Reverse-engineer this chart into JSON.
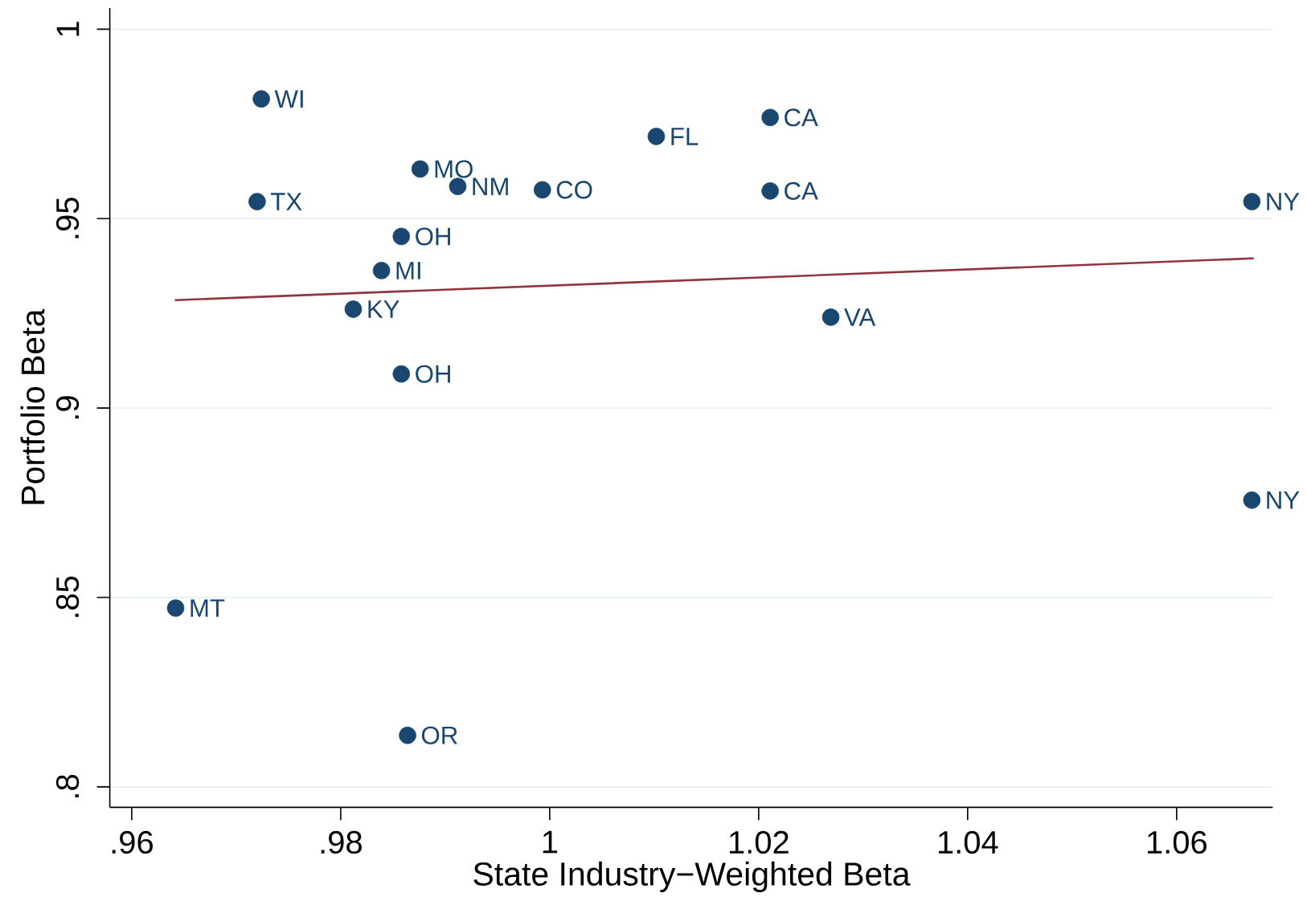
{
  "chart_data": {
    "type": "scatter",
    "xlabel": "State Industry−Weighted Beta",
    "ylabel": "Portfolio Beta",
    "xlim": [
      0.9579,
      1.0692
    ],
    "ylim": [
      0.7946,
      1.0056
    ],
    "xticks": [
      {
        "value": 0.96,
        "label": ".96"
      },
      {
        "value": 0.98,
        "label": ".98"
      },
      1,
      1.02,
      1.04,
      1.06
    ],
    "yticks": [
      {
        "value": 0.8,
        "label": ".8"
      },
      {
        "value": 0.85,
        "label": ".85"
      },
      {
        "value": 0.9,
        "label": ".9"
      },
      {
        "value": 0.95,
        "label": ".95"
      },
      1
    ],
    "grid": "y",
    "marker": "circle",
    "series": [
      {
        "color": "#1a476f",
        "x": [
          0.9642,
          0.972,
          0.9724,
          0.9812,
          0.9839,
          0.9858,
          0.9858,
          0.9864,
          0.9876,
          0.9912,
          0.9993,
          1.0102,
          1.0211,
          1.0211,
          1.0269,
          1.0672,
          1.0672
        ],
        "values": [
          0.8472,
          0.9545,
          0.9816,
          0.9261,
          0.9363,
          0.9453,
          0.909,
          0.8136,
          0.9631,
          0.9585,
          0.9576,
          0.9717,
          0.9767,
          0.9573,
          0.924,
          0.9545,
          0.8757
        ],
        "value_labels": [
          "MT",
          "TX",
          "WI",
          "KY",
          "MI",
          "OH",
          "OH",
          "OR",
          "MO",
          "NM",
          "CO",
          "FL",
          "CA",
          "CA",
          "VA",
          "NY",
          "NY"
        ]
      },
      {
        "type": "line",
        "color": "#90353b",
        "marker": "none",
        "x": [
          0.9642,
          1.0673
        ],
        "values": [
          0.9285,
          0.9395
        ]
      }
    ]
  }
}
